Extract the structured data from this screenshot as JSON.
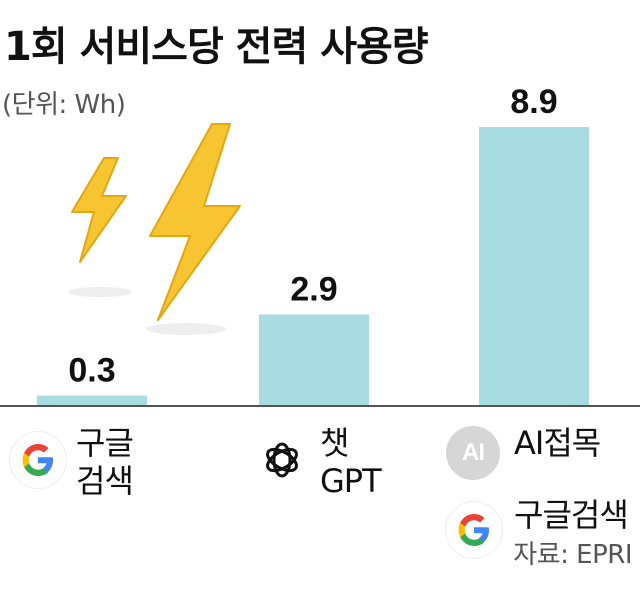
{
  "chart_data": {
    "type": "bar",
    "title": "1회 서비스당 전력 사용량",
    "unit_label": "(단위: Wh)",
    "categories": [
      {
        "lines": [
          "구글",
          "검색"
        ]
      },
      {
        "lines": [
          "챗",
          "GPT"
        ]
      },
      {
        "lines": [
          "AI접목",
          "구글검색"
        ]
      }
    ],
    "values": [
      0.3,
      2.9,
      8.9
    ],
    "value_labels": [
      "0.3",
      "2.9",
      "8.9"
    ],
    "ylim": [
      0,
      8.9
    ],
    "bar_color": "#a9dbe3",
    "grid": false,
    "source": "자료: EPRI"
  },
  "logos": {
    "ai_badge_text": "AI",
    "google_icon": "google-g-icon",
    "chatgpt_icon": "openai-knot-icon",
    "decoration": "lightning-bolt-icon"
  }
}
